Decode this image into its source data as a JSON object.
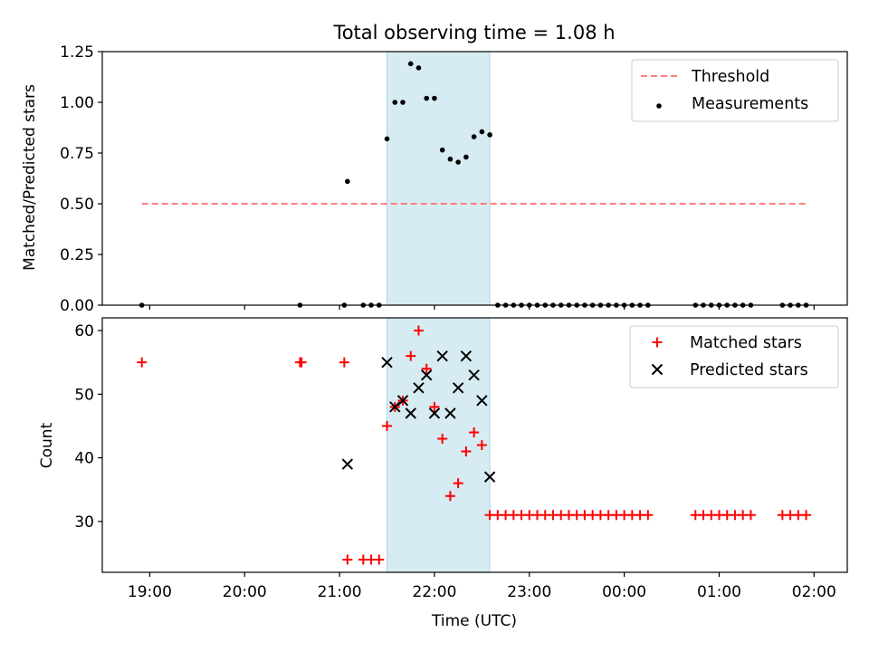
{
  "chart_data": [
    {
      "type": "scatter",
      "panel": "top",
      "title": "Total observing time = 1.08 h",
      "ylabel": "Matched/Predicted stars",
      "xlabel": "",
      "ylim": [
        0,
        1.25
      ],
      "yticks": [
        "0.00",
        "0.25",
        "0.50",
        "0.75",
        "1.00",
        "1.25"
      ],
      "shaded_interval": [
        "21:30",
        "22:35"
      ],
      "legend_position": "upper right",
      "series": [
        {
          "name": "Threshold",
          "kind": "dashed-line",
          "color": "#ff7f7f",
          "points": [
            [
              "18:55",
              0.5
            ],
            [
              "01:55",
              0.5
            ]
          ]
        },
        {
          "name": "Measurements",
          "kind": "dot",
          "color": "#000000",
          "points": [
            [
              "18:55",
              0.0
            ],
            [
              "20:35",
              0.0
            ],
            [
              "21:03",
              0.0
            ],
            [
              "21:05",
              0.61
            ],
            [
              "21:15",
              0.0
            ],
            [
              "21:20",
              0.0
            ],
            [
              "21:25",
              0.0
            ],
            [
              "21:30",
              0.82
            ],
            [
              "21:35",
              1.0
            ],
            [
              "21:40",
              1.0
            ],
            [
              "21:45",
              1.19
            ],
            [
              "21:50",
              1.17
            ],
            [
              "21:55",
              1.02
            ],
            [
              "22:00",
              1.02
            ],
            [
              "22:05",
              0.765
            ],
            [
              "22:10",
              0.72
            ],
            [
              "22:15",
              0.705
            ],
            [
              "22:20",
              0.73
            ],
            [
              "22:25",
              0.83
            ],
            [
              "22:30",
              0.855
            ],
            [
              "22:35",
              0.84
            ],
            [
              "22:40",
              0.0
            ],
            [
              "22:45",
              0.0
            ],
            [
              "22:50",
              0.0
            ],
            [
              "22:55",
              0.0
            ],
            [
              "23:00",
              0.0
            ],
            [
              "23:05",
              0.0
            ],
            [
              "23:10",
              0.0
            ],
            [
              "23:15",
              0.0
            ],
            [
              "23:20",
              0.0
            ],
            [
              "23:25",
              0.0
            ],
            [
              "23:30",
              0.0
            ],
            [
              "23:35",
              0.0
            ],
            [
              "23:40",
              0.0
            ],
            [
              "23:45",
              0.0
            ],
            [
              "23:50",
              0.0
            ],
            [
              "23:55",
              0.0
            ],
            [
              "00:00",
              0.0
            ],
            [
              "00:05",
              0.0
            ],
            [
              "00:10",
              0.0
            ],
            [
              "00:15",
              0.0
            ],
            [
              "00:45",
              0.0
            ],
            [
              "00:50",
              0.0
            ],
            [
              "00:55",
              0.0
            ],
            [
              "01:00",
              0.0
            ],
            [
              "01:05",
              0.0
            ],
            [
              "01:10",
              0.0
            ],
            [
              "01:15",
              0.0
            ],
            [
              "01:20",
              0.0
            ],
            [
              "01:40",
              0.0
            ],
            [
              "01:45",
              0.0
            ],
            [
              "01:50",
              0.0
            ],
            [
              "01:55",
              0.0
            ]
          ]
        }
      ]
    },
    {
      "type": "scatter",
      "panel": "bottom",
      "title": "",
      "xlabel": "Time (UTC)",
      "ylabel": "Count",
      "ylim": [
        22,
        62
      ],
      "yticks": [
        "30",
        "40",
        "50",
        "60"
      ],
      "xticks": [
        "19:00",
        "20:00",
        "21:00",
        "22:00",
        "23:00",
        "00:00",
        "01:00",
        "02:00"
      ],
      "shaded_interval": [
        "21:30",
        "22:35"
      ],
      "legend_position": "upper right",
      "series": [
        {
          "name": "Matched stars",
          "kind": "plus",
          "color": "#ff0000",
          "points": [
            [
              "18:55",
              55
            ],
            [
              "20:35",
              55
            ],
            [
              "20:36",
              55
            ],
            [
              "21:03",
              55
            ],
            [
              "21:05",
              24
            ],
            [
              "21:15",
              24
            ],
            [
              "21:20",
              24
            ],
            [
              "21:25",
              24
            ],
            [
              "21:30",
              45
            ],
            [
              "21:35",
              48
            ],
            [
              "21:40",
              49
            ],
            [
              "21:45",
              56
            ],
            [
              "21:50",
              60
            ],
            [
              "21:55",
              54
            ],
            [
              "22:00",
              48
            ],
            [
              "22:05",
              43
            ],
            [
              "22:10",
              34
            ],
            [
              "22:15",
              36
            ],
            [
              "22:20",
              41
            ],
            [
              "22:25",
              44
            ],
            [
              "22:30",
              42
            ],
            [
              "22:35",
              31
            ],
            [
              "22:40",
              31
            ],
            [
              "22:45",
              31
            ],
            [
              "22:50",
              31
            ],
            [
              "22:55",
              31
            ],
            [
              "23:00",
              31
            ],
            [
              "23:05",
              31
            ],
            [
              "23:10",
              31
            ],
            [
              "23:15",
              31
            ],
            [
              "23:20",
              31
            ],
            [
              "23:25",
              31
            ],
            [
              "23:30",
              31
            ],
            [
              "23:35",
              31
            ],
            [
              "23:40",
              31
            ],
            [
              "23:45",
              31
            ],
            [
              "23:50",
              31
            ],
            [
              "23:55",
              31
            ],
            [
              "00:00",
              31
            ],
            [
              "00:05",
              31
            ],
            [
              "00:10",
              31
            ],
            [
              "00:15",
              31
            ],
            [
              "00:45",
              31
            ],
            [
              "00:50",
              31
            ],
            [
              "00:55",
              31
            ],
            [
              "01:00",
              31
            ],
            [
              "01:05",
              31
            ],
            [
              "01:10",
              31
            ],
            [
              "01:15",
              31
            ],
            [
              "01:20",
              31
            ],
            [
              "01:40",
              31
            ],
            [
              "01:45",
              31
            ],
            [
              "01:50",
              31
            ],
            [
              "01:55",
              31
            ]
          ]
        },
        {
          "name": "Predicted stars",
          "kind": "x",
          "color": "#000000",
          "points": [
            [
              "21:05",
              39
            ],
            [
              "21:30",
              55
            ],
            [
              "21:35",
              48
            ],
            [
              "21:40",
              49
            ],
            [
              "21:45",
              47
            ],
            [
              "21:50",
              51
            ],
            [
              "21:55",
              53
            ],
            [
              "22:00",
              47
            ],
            [
              "22:05",
              56
            ],
            [
              "22:10",
              47
            ],
            [
              "22:15",
              51
            ],
            [
              "22:20",
              56
            ],
            [
              "22:25",
              53
            ],
            [
              "22:30",
              49
            ],
            [
              "22:35",
              37
            ]
          ]
        }
      ]
    }
  ]
}
